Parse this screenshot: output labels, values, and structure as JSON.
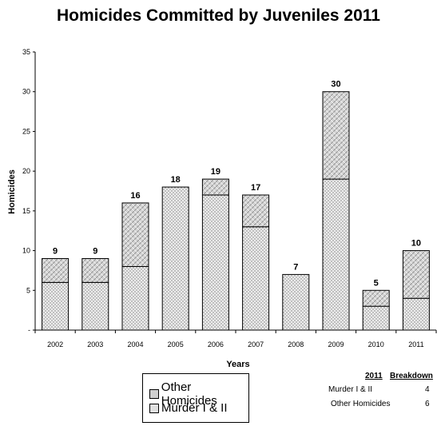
{
  "chart_data": {
    "type": "bar",
    "stacked": true,
    "title": "Homicides Committed by Juveniles 2011",
    "xlabel": "Years",
    "ylabel": "Homicides",
    "ylim": [
      0,
      35
    ],
    "yticks": [
      "-",
      "5",
      "10",
      "15",
      "20",
      "25",
      "30",
      "35"
    ],
    "categories": [
      "2002",
      "2003",
      "2004",
      "2005",
      "2006",
      "2007",
      "2008",
      "2009",
      "2010",
      "2011"
    ],
    "series": [
      {
        "name": "Murder I & II",
        "values": [
          6,
          6,
          8,
          18,
          17,
          13,
          7,
          19,
          3,
          4
        ]
      },
      {
        "name": "Other Homicides",
        "values": [
          3,
          3,
          8,
          0,
          2,
          4,
          0,
          11,
          2,
          6
        ]
      }
    ],
    "totals": [
      "9",
      "9",
      "16",
      "18",
      "19",
      "17",
      "7",
      "30",
      "5",
      "10"
    ],
    "legend": [
      "Other Homicides",
      "Murder I & II"
    ],
    "breakdown": {
      "year": "2011",
      "heading": "Breakdown",
      "rows": [
        {
          "label": "Murder I & II",
          "value": "4"
        },
        {
          "label": "Other Homicides",
          "value": "6"
        }
      ]
    }
  }
}
